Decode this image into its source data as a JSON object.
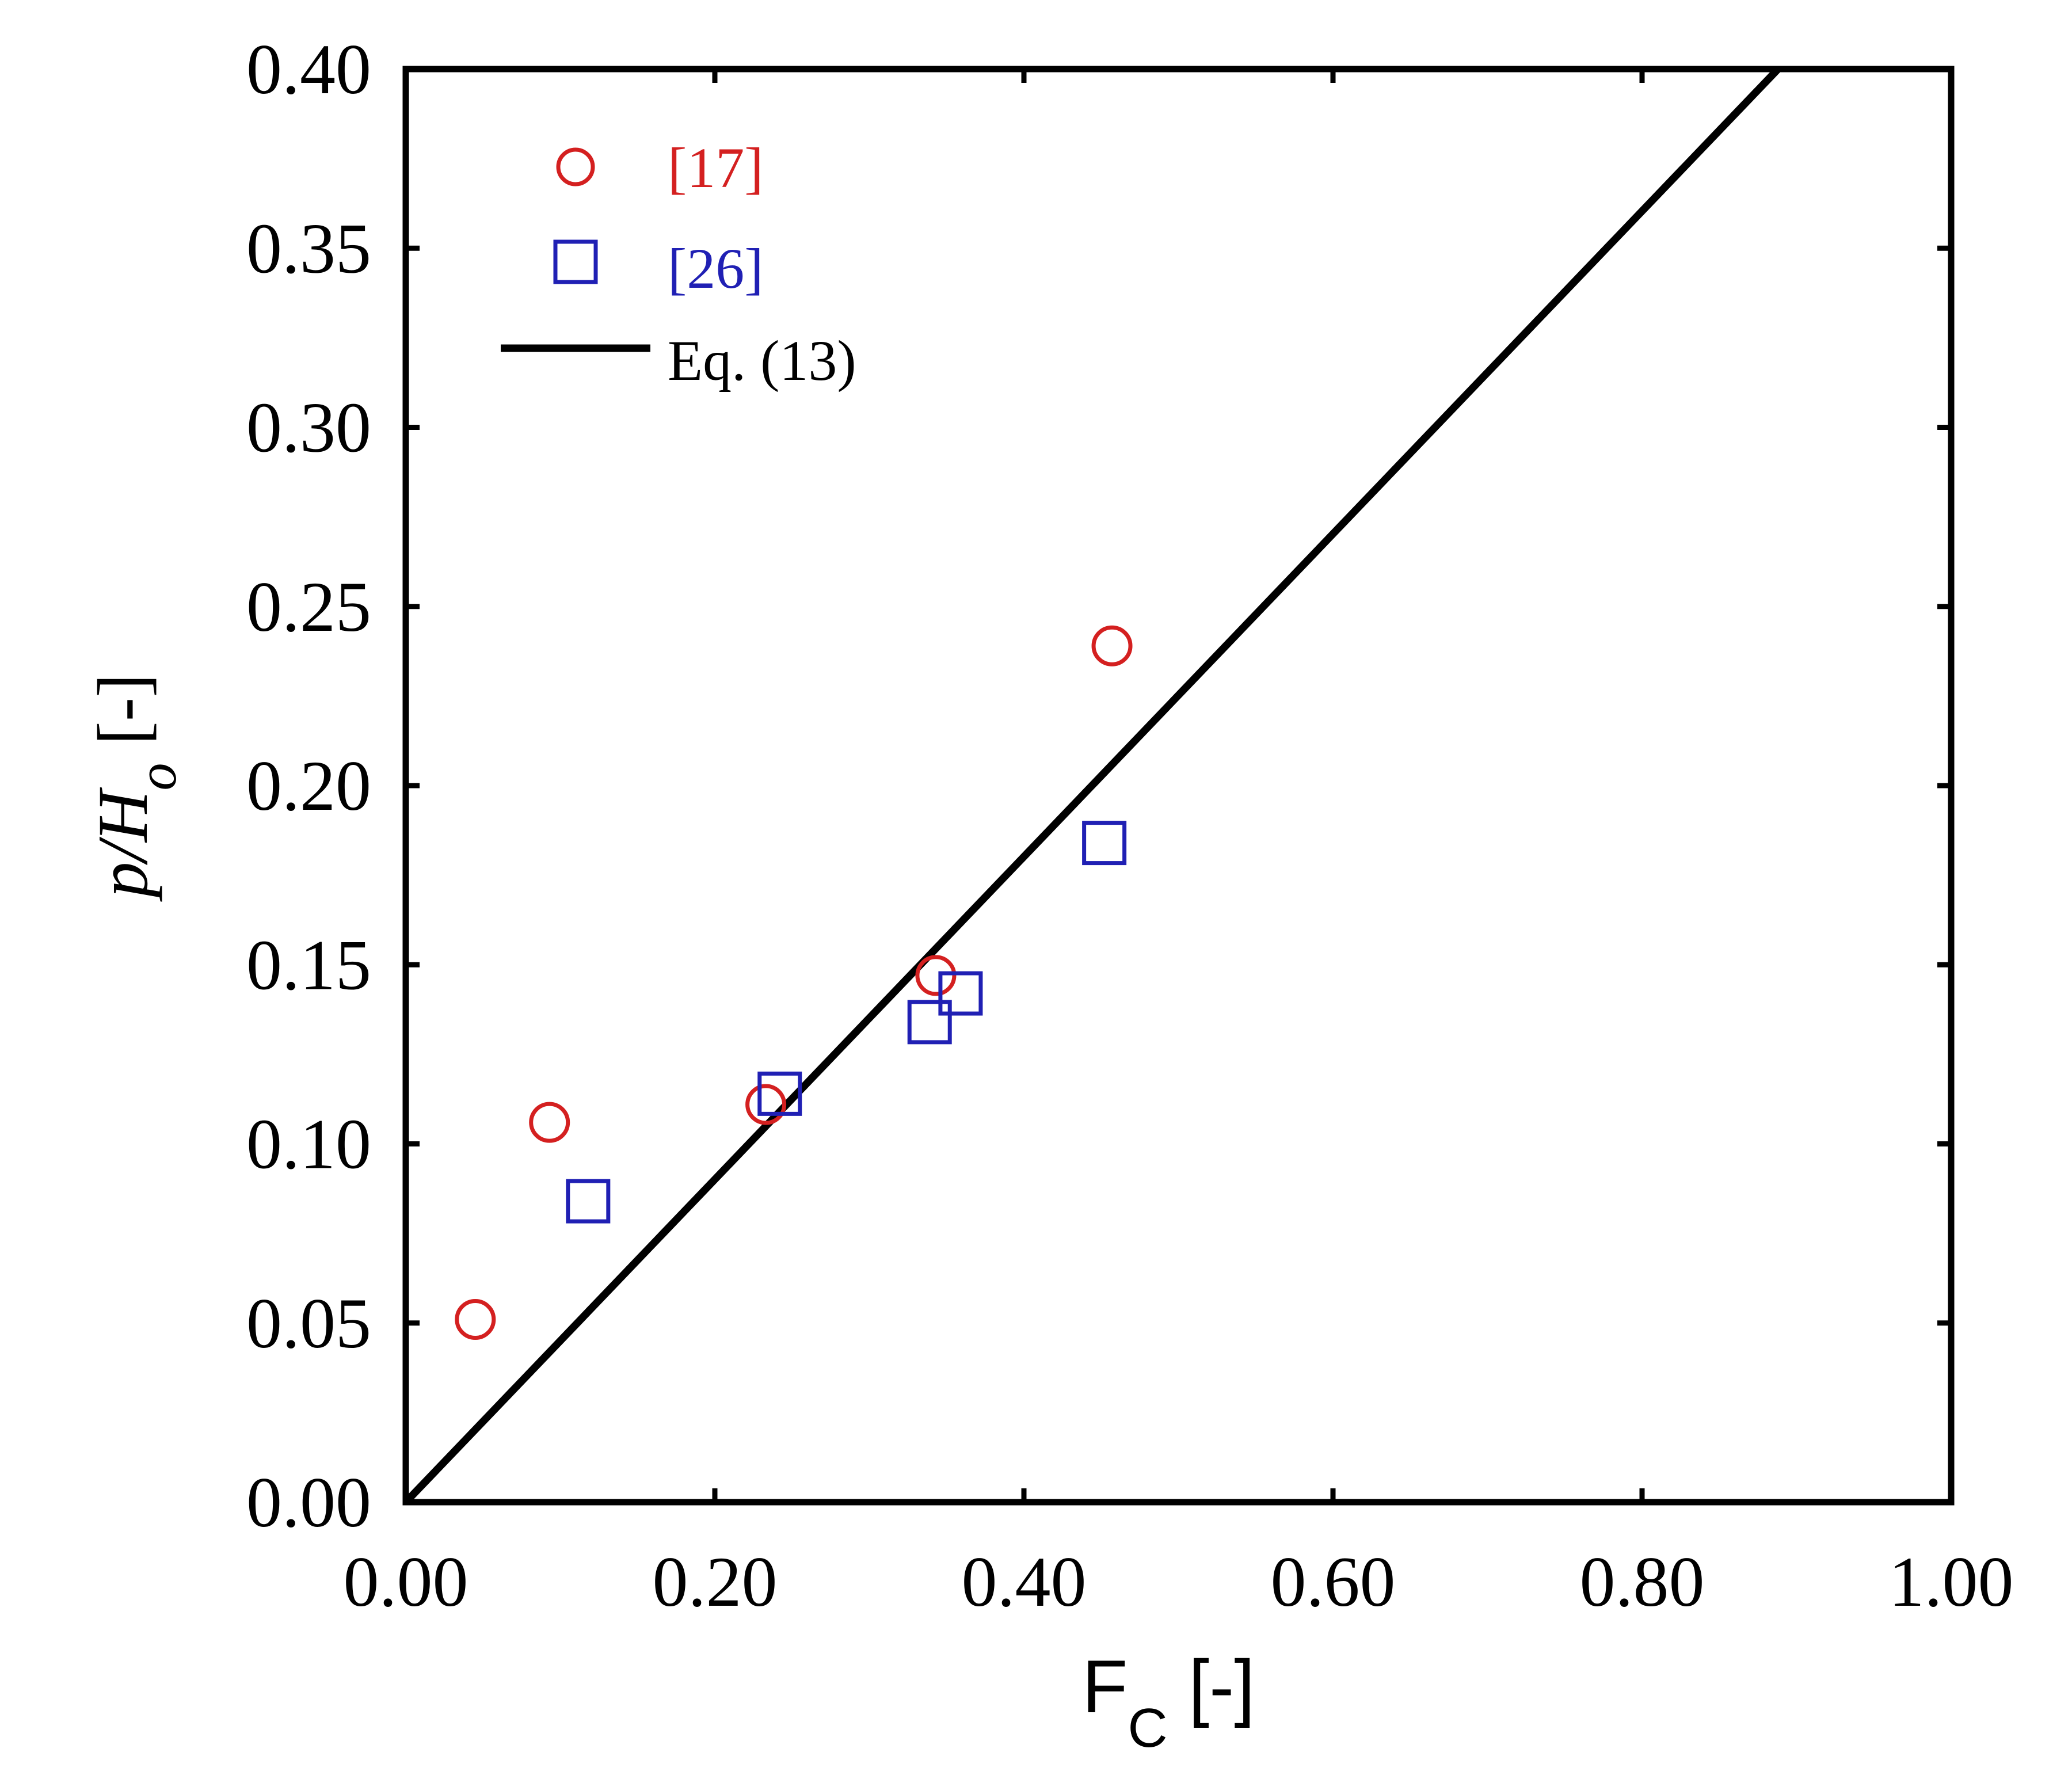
{
  "chart_data": {
    "type": "scatter",
    "xlabel": {
      "main": "F",
      "sub": "C",
      "unit": " [-]"
    },
    "ylabel": {
      "main": "p/H",
      "sub": "o",
      "unit": " [-]"
    },
    "xlim": [
      0.0,
      1.0
    ],
    "ylim": [
      0.0,
      0.4
    ],
    "x_ticks": [
      0.0,
      0.2,
      0.4,
      0.6,
      0.8,
      1.0
    ],
    "x_tick_labels": [
      "0.00",
      "0.20",
      "0.40",
      "0.60",
      "0.80",
      "1.00"
    ],
    "y_ticks": [
      0.0,
      0.05,
      0.1,
      0.15,
      0.2,
      0.25,
      0.3,
      0.35,
      0.4
    ],
    "y_tick_labels": [
      "0.00",
      "0.05",
      "0.10",
      "0.15",
      "0.20",
      "0.25",
      "0.30",
      "0.35",
      "0.40"
    ],
    "grid": false,
    "legend_position": "top-left",
    "series": [
      {
        "name": "[17]",
        "marker": "circle",
        "color": "#d42020",
        "points": [
          {
            "x": 0.045,
            "y": 0.051
          },
          {
            "x": 0.093,
            "y": 0.106
          },
          {
            "x": 0.233,
            "y": 0.111
          },
          {
            "x": 0.343,
            "y": 0.147
          },
          {
            "x": 0.457,
            "y": 0.239
          }
        ]
      },
      {
        "name": "[26]",
        "marker": "square",
        "color": "#2020b4",
        "points": [
          {
            "x": 0.118,
            "y": 0.084
          },
          {
            "x": 0.242,
            "y": 0.114
          },
          {
            "x": 0.339,
            "y": 0.134
          },
          {
            "x": 0.359,
            "y": 0.142
          },
          {
            "x": 0.452,
            "y": 0.184
          }
        ]
      },
      {
        "name": "Eq. (13)",
        "marker": "line",
        "color": "#000000",
        "points": [
          {
            "x": 0.0,
            "y": 0.0
          },
          {
            "x": 0.888,
            "y": 0.4
          }
        ]
      }
    ]
  }
}
